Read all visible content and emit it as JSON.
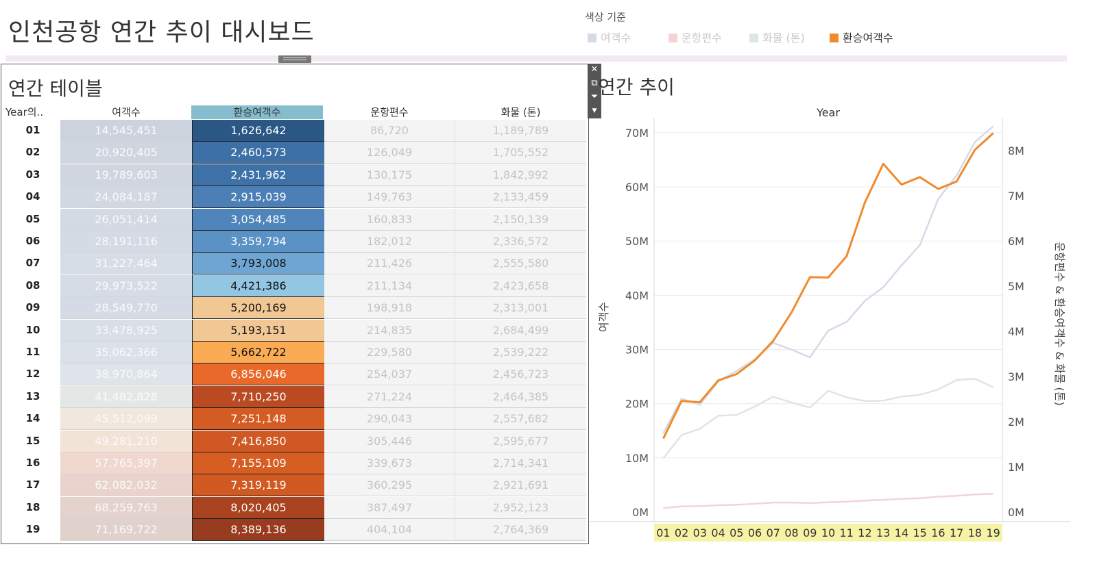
{
  "dashboard": {
    "title": "인천공항 연간 추이 대시보드"
  },
  "legend": {
    "title": "색상 기준",
    "items": [
      {
        "label": "여객수",
        "color": "#d4dbe6",
        "active": false
      },
      {
        "label": "운항편수",
        "color": "#f2d4d7",
        "active": false
      },
      {
        "label": "화물 (톤)",
        "color": "#dde6e3",
        "active": false
      },
      {
        "label": "환승여객수",
        "color": "#f08a2c",
        "active": true
      }
    ]
  },
  "table": {
    "title": "연간 테이블",
    "columns": [
      "Year의..",
      "여객수",
      "환승여객수",
      "운항편수",
      "화물 (톤)"
    ],
    "rows": [
      {
        "year": "01",
        "passengers": "14,545,451",
        "transfer": "1,626,642",
        "flights": "86,720",
        "cargo": "1,189,789",
        "pax_bg": "#cdd3de",
        "trn_bg": "#2a5784"
      },
      {
        "year": "02",
        "passengers": "20,920,405",
        "transfer": "2,460,573",
        "flights": "126,049",
        "cargo": "1,705,552",
        "pax_bg": "#d0d6e0",
        "trn_bg": "#3d70a6"
      },
      {
        "year": "03",
        "passengers": "19,789,603",
        "transfer": "2,431,962",
        "flights": "130,175",
        "cargo": "1,842,992",
        "pax_bg": "#d0d6e0",
        "trn_bg": "#3e71a7"
      },
      {
        "year": "04",
        "passengers": "24,084,187",
        "transfer": "2,915,039",
        "flights": "149,763",
        "cargo": "2,133,459",
        "pax_bg": "#d2d8e2",
        "trn_bg": "#4b7fb5"
      },
      {
        "year": "05",
        "passengers": "26,051,414",
        "transfer": "3,054,485",
        "flights": "160,833",
        "cargo": "2,150,139",
        "pax_bg": "#d4dae3",
        "trn_bg": "#4f85bb"
      },
      {
        "year": "06",
        "passengers": "28,191,116",
        "transfer": "3,359,794",
        "flights": "182,012",
        "cargo": "2,336,572",
        "pax_bg": "#d5dbe4",
        "trn_bg": "#5a92c5"
      },
      {
        "year": "07",
        "passengers": "31,227,464",
        "transfer": "3,793,008",
        "flights": "211,426",
        "cargo": "2,555,580",
        "pax_bg": "#d7dde6",
        "trn_bg": "#6ea5d2"
      },
      {
        "year": "08",
        "passengers": "29,973,522",
        "transfer": "4,421,386",
        "flights": "211,134",
        "cargo": "2,423,658",
        "pax_bg": "#d6dce5",
        "trn_bg": "#92c6e3"
      },
      {
        "year": "09",
        "passengers": "28,549,770",
        "transfer": "5,200,169",
        "flights": "198,918",
        "cargo": "2,313,001",
        "pax_bg": "#d5dbe4",
        "trn_bg": "#f1c894"
      },
      {
        "year": "10",
        "passengers": "33,478,925",
        "transfer": "5,193,151",
        "flights": "214,835",
        "cargo": "2,684,499",
        "pax_bg": "#d9dfe7",
        "trn_bg": "#f1c894"
      },
      {
        "year": "11",
        "passengers": "35,062,366",
        "transfer": "5,662,722",
        "flights": "229,580",
        "cargo": "2,539,222",
        "pax_bg": "#dbe1e8",
        "trn_bg": "#fbab54"
      },
      {
        "year": "12",
        "passengers": "38,970,864",
        "transfer": "6,856,046",
        "flights": "254,037",
        "cargo": "2,456,723",
        "pax_bg": "#dfe4ea",
        "trn_bg": "#e8692a"
      },
      {
        "year": "13",
        "passengers": "41,482,828",
        "transfer": "7,710,250",
        "flights": "271,224",
        "cargo": "2,464,385",
        "pax_bg": "#e3e8e6",
        "trn_bg": "#b94a22"
      },
      {
        "year": "14",
        "passengers": "45,512,099",
        "transfer": "7,251,148",
        "flights": "290,043",
        "cargo": "2,557,682",
        "pax_bg": "#f2e7dc",
        "trn_bg": "#d45c23"
      },
      {
        "year": "15",
        "passengers": "49,281,210",
        "transfer": "7,416,850",
        "flights": "305,446",
        "cargo": "2,595,677",
        "pax_bg": "#f2e3d7",
        "trn_bg": "#cf5823"
      },
      {
        "year": "16",
        "passengers": "57,765,397",
        "transfer": "7,155,109",
        "flights": "339,673",
        "cargo": "2,714,341",
        "pax_bg": "#f0d8cf",
        "trn_bg": "#d65e23"
      },
      {
        "year": "17",
        "passengers": "62,082,032",
        "transfer": "7,319,119",
        "flights": "360,295",
        "cargo": "2,921,691",
        "pax_bg": "#e9d3cc",
        "trn_bg": "#d15a23"
      },
      {
        "year": "18",
        "passengers": "68,259,763",
        "transfer": "8,020,405",
        "flights": "387,497",
        "cargo": "2,952,123",
        "pax_bg": "#e4d2cd",
        "trn_bg": "#a8421f"
      },
      {
        "year": "19",
        "passengers": "71,169,722",
        "transfer": "8,389,136",
        "flights": "404,104",
        "cargo": "2,764,369",
        "pax_bg": "#e1d1cc",
        "trn_bg": "#983b1e"
      }
    ]
  },
  "toolbar": {
    "icons": [
      "close-icon",
      "popout-icon",
      "filter-icon",
      "dropdown-icon"
    ]
  },
  "chart": {
    "title": "연간 추이"
  },
  "chart_data": {
    "type": "line",
    "xlabel": "Year",
    "x": [
      "01",
      "02",
      "03",
      "04",
      "05",
      "06",
      "07",
      "08",
      "09",
      "10",
      "11",
      "12",
      "13",
      "14",
      "15",
      "16",
      "17",
      "18",
      "19"
    ],
    "y_left": {
      "label": "여객수",
      "ticks": [
        "0M",
        "10M",
        "20M",
        "30M",
        "40M",
        "50M",
        "60M",
        "70M"
      ],
      "range": [
        0,
        72000000
      ]
    },
    "y_right": {
      "label": "운항편수 & 환승여객수 & 화물 (톤)",
      "ticks": [
        "0M",
        "1M",
        "2M",
        "3M",
        "4M",
        "5M",
        "6M",
        "7M",
        "8M"
      ],
      "range": [
        0,
        8640000
      ]
    },
    "grid": true,
    "series": [
      {
        "name": "여객수",
        "axis": "left",
        "color": "#d4dbe6",
        "values": [
          14545451,
          20920405,
          19789603,
          24084187,
          26051414,
          28191116,
          31227464,
          29973522,
          28549770,
          33478925,
          35062366,
          38970864,
          41482828,
          45512099,
          49281210,
          57765397,
          62082032,
          68259763,
          71169722
        ]
      },
      {
        "name": "운항편수",
        "axis": "right",
        "color": "#f2d4d7",
        "values": [
          86720,
          126049,
          130175,
          149763,
          160833,
          182012,
          211426,
          211134,
          198918,
          214835,
          229580,
          254037,
          271224,
          290043,
          305446,
          339673,
          360295,
          387497,
          404104
        ]
      },
      {
        "name": "화물 (톤)",
        "axis": "right",
        "color": "#dde6e3",
        "values": [
          1189789,
          1705552,
          1842992,
          2133459,
          2150139,
          2336572,
          2555580,
          2423658,
          2313001,
          2684499,
          2539222,
          2456723,
          2464385,
          2557682,
          2595677,
          2714341,
          2921691,
          2952123,
          2764369
        ]
      },
      {
        "name": "환승여객수",
        "axis": "right",
        "color": "#f08a2c",
        "values": [
          1626642,
          2460573,
          2431962,
          2915039,
          3054485,
          3359794,
          3793008,
          4421386,
          5200169,
          5193151,
          5662722,
          6856046,
          7710250,
          7251148,
          7416850,
          7155109,
          7319119,
          8020405,
          8389136
        ]
      }
    ]
  }
}
